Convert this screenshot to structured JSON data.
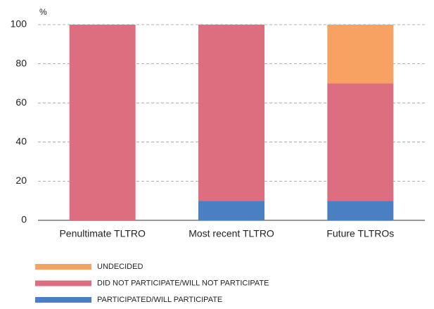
{
  "chart_data": {
    "type": "stacked_bar",
    "y_axis_label": "%",
    "categories": [
      "Penultimate TLTRO",
      "Most recent TLTRO",
      "Future TLTROs"
    ],
    "series": [
      {
        "name": "PARTICIPATED/WILL PARTICIPATE",
        "color": "#4a7fc1",
        "values": [
          0,
          10,
          10
        ]
      },
      {
        "name": "DID NOT PARTICIPATE/WILL NOT PARTICIPATE",
        "color": "#dc6e80",
        "values": [
          100,
          90,
          60
        ]
      },
      {
        "name": "UNDECIDED",
        "color": "#f7a163",
        "values": [
          0,
          0,
          30
        ]
      }
    ],
    "ylim": [
      0,
      100
    ],
    "yticks": [
      0,
      20,
      40,
      60,
      80,
      100
    ],
    "grid": true
  }
}
